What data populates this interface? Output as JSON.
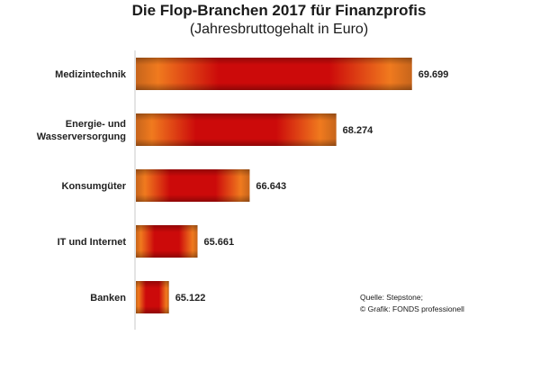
{
  "chart_data": {
    "type": "bar",
    "orientation": "horizontal",
    "title": "Die Flop-Branchen 2017 für Finanzprofis",
    "subtitle": "(Jahresbruttogehalt in Euro)",
    "categories": [
      [
        "Medizintechnik"
      ],
      [
        "Energie- und",
        "Wasserversorgung"
      ],
      [
        "Konsumgüter"
      ],
      [
        "IT und Internet"
      ],
      [
        "Banken"
      ]
    ],
    "values": [
      69699,
      68274,
      66643,
      65661,
      65122
    ],
    "value_labels": [
      "69.699",
      "68.274",
      "66.643",
      "65.661",
      "65.122"
    ],
    "xlim": [
      64500,
      70500
    ],
    "grid": false,
    "legend": "none",
    "colors": {
      "bar_edge": "#c7651c",
      "bar_glow": "#f07a1e",
      "bar_core": "#cc0a0a"
    }
  },
  "source": {
    "line1": "Quelle: Stepstone;",
    "line2": "© Grafik: FONDS professionell"
  }
}
